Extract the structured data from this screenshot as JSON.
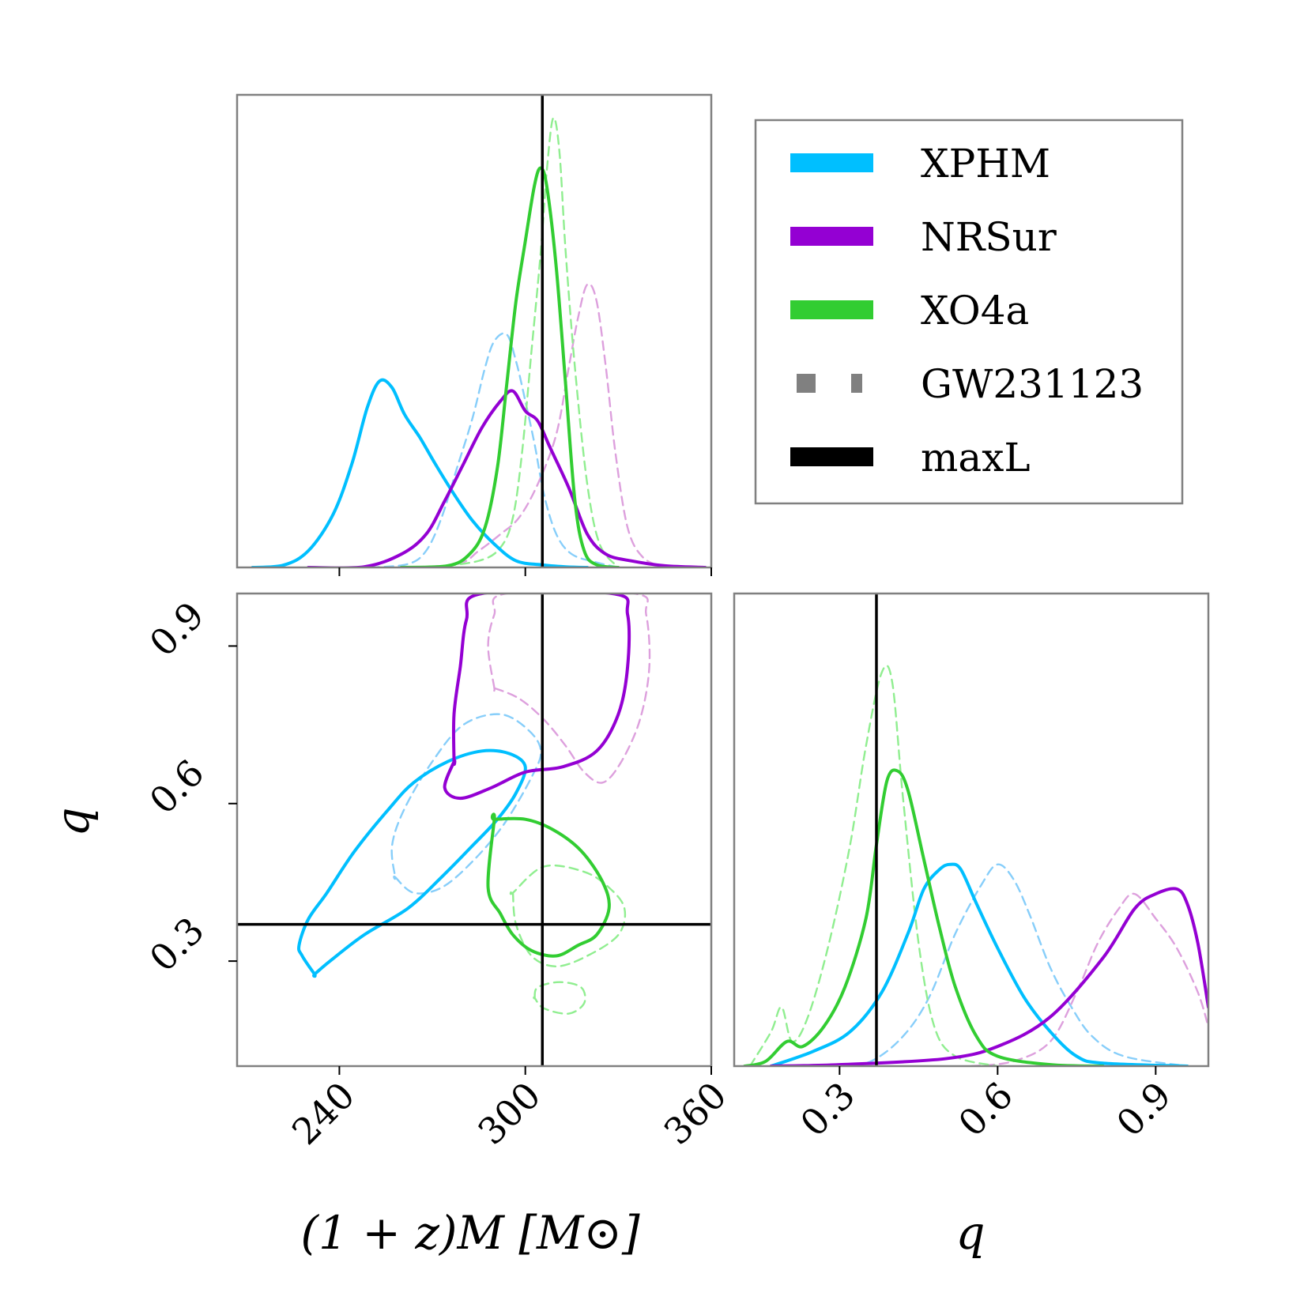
{
  "chart_data": {
    "type": "corner",
    "title": "",
    "parameters": [
      {
        "key": "M",
        "label": "(1 + z)M  [M⊙]",
        "range": [
          207,
          360
        ],
        "ticks": [
          240,
          300,
          360
        ],
        "tick_labels": [
          "240",
          "300",
          "360"
        ]
      },
      {
        "key": "q",
        "label": "q",
        "range": [
          0.1,
          1.0
        ],
        "ticks": [
          0.3,
          0.6,
          0.9
        ],
        "tick_labels": [
          "0.3",
          "0.6",
          "0.9"
        ]
      }
    ],
    "maxL": {
      "M": 305.5,
      "q": 0.37
    },
    "legend": {
      "position": "top-right",
      "entries": [
        {
          "label": "XPHM",
          "style": "solid",
          "color": "#00bfff"
        },
        {
          "label": "NRSur",
          "style": "solid",
          "color": "#9400d3"
        },
        {
          "label": "XO4a",
          "style": "solid",
          "color": "#32cd32"
        },
        {
          "label": "GW231123",
          "style": "dashed",
          "color": "#808080"
        },
        {
          "label": "maxL",
          "style": "solid",
          "color": "#000000"
        }
      ]
    },
    "series": [
      {
        "name": "XPHM",
        "style": "solid",
        "color": "#00bfff",
        "M_density": [
          [
            212,
            0.0
          ],
          [
            222,
            0.007
          ],
          [
            230,
            0.05
          ],
          [
            238,
            0.16
          ],
          [
            244,
            0.31
          ],
          [
            249,
            0.48
          ],
          [
            253,
            0.56
          ],
          [
            257,
            0.54
          ],
          [
            261,
            0.46
          ],
          [
            266,
            0.39
          ],
          [
            271,
            0.31
          ],
          [
            277,
            0.22
          ],
          [
            283,
            0.14
          ],
          [
            290,
            0.07
          ],
          [
            297,
            0.02
          ],
          [
            305,
            0.008
          ],
          [
            313,
            0.002
          ],
          [
            320,
            0.0
          ]
        ],
        "q_density": [
          [
            0.17,
            0.0
          ],
          [
            0.25,
            0.03
          ],
          [
            0.32,
            0.07
          ],
          [
            0.38,
            0.15
          ],
          [
            0.43,
            0.27
          ],
          [
            0.46,
            0.36
          ],
          [
            0.49,
            0.4
          ],
          [
            0.51,
            0.41
          ],
          [
            0.53,
            0.4
          ],
          [
            0.56,
            0.33
          ],
          [
            0.6,
            0.24
          ],
          [
            0.65,
            0.14
          ],
          [
            0.7,
            0.07
          ],
          [
            0.75,
            0.02
          ],
          [
            0.8,
            0.006
          ],
          [
            0.96,
            0.0
          ]
        ],
        "contour": [
          [
            232,
            0.275
          ],
          [
            228,
            0.31
          ],
          [
            227,
            0.33
          ],
          [
            230,
            0.38
          ],
          [
            236,
            0.43
          ],
          [
            245,
            0.51
          ],
          [
            256,
            0.59
          ],
          [
            264,
            0.64
          ],
          [
            275,
            0.68
          ],
          [
            286,
            0.7
          ],
          [
            295,
            0.695
          ],
          [
            300,
            0.67
          ],
          [
            297,
            0.62
          ],
          [
            291,
            0.57
          ],
          [
            283,
            0.52
          ],
          [
            273,
            0.46
          ],
          [
            262,
            0.4
          ],
          [
            248,
            0.35
          ],
          [
            237,
            0.3
          ],
          [
            232,
            0.275
          ]
        ]
      },
      {
        "name": "NRSur",
        "style": "solid",
        "color": "#9400d3",
        "M_density": [
          [
            230,
            0.0
          ],
          [
            248,
            0.002
          ],
          [
            260,
            0.04
          ],
          [
            268,
            0.1
          ],
          [
            274,
            0.2
          ],
          [
            280,
            0.31
          ],
          [
            286,
            0.42
          ],
          [
            292,
            0.5
          ],
          [
            296,
            0.53
          ],
          [
            300,
            0.47
          ],
          [
            304,
            0.44
          ],
          [
            308,
            0.36
          ],
          [
            314,
            0.24
          ],
          [
            320,
            0.1
          ],
          [
            326,
            0.04
          ],
          [
            334,
            0.02
          ],
          [
            345,
            0.005
          ],
          [
            358,
            0.0
          ]
        ],
        "q_density": [
          [
            0.17,
            0.0
          ],
          [
            0.3,
            0.003
          ],
          [
            0.5,
            0.015
          ],
          [
            0.6,
            0.04
          ],
          [
            0.7,
            0.1
          ],
          [
            0.8,
            0.22
          ],
          [
            0.86,
            0.32
          ],
          [
            0.9,
            0.35
          ],
          [
            0.94,
            0.36
          ],
          [
            0.96,
            0.33
          ],
          [
            0.98,
            0.25
          ],
          [
            1.0,
            0.12
          ]
        ],
        "contour": [
          [
            277,
            0.68
          ],
          [
            277,
            0.77
          ],
          [
            279,
            0.86
          ],
          [
            281,
            0.95
          ],
          [
            286,
            1.0
          ],
          [
            328,
            1.0
          ],
          [
            333,
            0.96
          ],
          [
            333,
            0.86
          ],
          [
            330,
            0.77
          ],
          [
            323,
            0.7
          ],
          [
            312,
            0.67
          ],
          [
            300,
            0.66
          ],
          [
            289,
            0.63
          ],
          [
            279,
            0.61
          ],
          [
            274,
            0.63
          ],
          [
            277,
            0.68
          ]
        ]
      },
      {
        "name": "XO4a",
        "style": "solid",
        "color": "#32cd32",
        "M_density": [
          [
            260,
            0.0
          ],
          [
            275,
            0.005
          ],
          [
            282,
            0.04
          ],
          [
            287,
            0.12
          ],
          [
            291,
            0.3
          ],
          [
            294,
            0.55
          ],
          [
            297,
            0.8
          ],
          [
            300,
            0.98
          ],
          [
            303,
            1.15
          ],
          [
            305,
            1.2
          ],
          [
            307,
            1.14
          ],
          [
            310,
            0.9
          ],
          [
            313,
            0.55
          ],
          [
            316,
            0.2
          ],
          [
            319,
            0.05
          ],
          [
            323,
            0.008
          ],
          [
            330,
            0.0
          ]
        ],
        "q_density": [
          [
            0.12,
            0.0
          ],
          [
            0.16,
            0.01
          ],
          [
            0.2,
            0.05
          ],
          [
            0.23,
            0.04
          ],
          [
            0.27,
            0.08
          ],
          [
            0.31,
            0.16
          ],
          [
            0.35,
            0.3
          ],
          [
            0.37,
            0.45
          ],
          [
            0.39,
            0.58
          ],
          [
            0.41,
            0.6
          ],
          [
            0.43,
            0.56
          ],
          [
            0.46,
            0.42
          ],
          [
            0.49,
            0.28
          ],
          [
            0.52,
            0.16
          ],
          [
            0.56,
            0.06
          ],
          [
            0.6,
            0.02
          ],
          [
            0.7,
            0.003
          ],
          [
            0.8,
            0.0
          ]
        ],
        "contour": [
          [
            290,
            0.57
          ],
          [
            288,
            0.44
          ],
          [
            292,
            0.39
          ],
          [
            296,
            0.35
          ],
          [
            302,
            0.32
          ],
          [
            310,
            0.31
          ],
          [
            317,
            0.33
          ],
          [
            323,
            0.35
          ],
          [
            327,
            0.4
          ],
          [
            325,
            0.45
          ],
          [
            318,
            0.51
          ],
          [
            309,
            0.55
          ],
          [
            300,
            0.57
          ],
          [
            290,
            0.57
          ]
        ]
      },
      {
        "name": "GW231123 XPHM",
        "style": "dashed",
        "color": "#87cefa",
        "M_density": [
          [
            250,
            0.0
          ],
          [
            262,
            0.01
          ],
          [
            268,
            0.05
          ],
          [
            273,
            0.15
          ],
          [
            278,
            0.3
          ],
          [
            283,
            0.45
          ],
          [
            287,
            0.6
          ],
          [
            290,
            0.68
          ],
          [
            294,
            0.7
          ],
          [
            297,
            0.62
          ],
          [
            300,
            0.5
          ],
          [
            303,
            0.37
          ],
          [
            306,
            0.22
          ],
          [
            310,
            0.1
          ],
          [
            315,
            0.04
          ],
          [
            323,
            0.015
          ],
          [
            330,
            0.0
          ]
        ],
        "q_density": [
          [
            0.3,
            0.0
          ],
          [
            0.36,
            0.01
          ],
          [
            0.42,
            0.06
          ],
          [
            0.47,
            0.14
          ],
          [
            0.52,
            0.27
          ],
          [
            0.57,
            0.37
          ],
          [
            0.6,
            0.41
          ],
          [
            0.63,
            0.38
          ],
          [
            0.66,
            0.31
          ],
          [
            0.7,
            0.2
          ],
          [
            0.74,
            0.12
          ],
          [
            0.78,
            0.06
          ],
          [
            0.84,
            0.02
          ],
          [
            0.96,
            0.0
          ]
        ],
        "contour": [
          [
            258,
            0.46
          ],
          [
            264,
            0.43
          ],
          [
            273,
            0.44
          ],
          [
            283,
            0.49
          ],
          [
            293,
            0.56
          ],
          [
            302,
            0.65
          ],
          [
            305,
            0.7
          ],
          [
            301,
            0.74
          ],
          [
            292,
            0.77
          ],
          [
            280,
            0.75
          ],
          [
            270,
            0.68
          ],
          [
            261,
            0.59
          ],
          [
            257,
            0.52
          ],
          [
            258,
            0.46
          ]
        ]
      },
      {
        "name": "GW231123 NRSur",
        "style": "dashed",
        "color": "#dda0dd",
        "M_density": [
          [
            260,
            0.0
          ],
          [
            278,
            0.01
          ],
          [
            285,
            0.05
          ],
          [
            292,
            0.1
          ],
          [
            298,
            0.15
          ],
          [
            304,
            0.25
          ],
          [
            310,
            0.4
          ],
          [
            314,
            0.6
          ],
          [
            317,
            0.75
          ],
          [
            320,
            0.85
          ],
          [
            323,
            0.8
          ],
          [
            326,
            0.6
          ],
          [
            329,
            0.35
          ],
          [
            333,
            0.12
          ],
          [
            338,
            0.03
          ],
          [
            345,
            0.0
          ]
        ],
        "q_density": [
          [
            0.55,
            0.0
          ],
          [
            0.63,
            0.01
          ],
          [
            0.7,
            0.05
          ],
          [
            0.75,
            0.15
          ],
          [
            0.79,
            0.25
          ],
          [
            0.83,
            0.32
          ],
          [
            0.86,
            0.35
          ],
          [
            0.9,
            0.3
          ],
          [
            0.94,
            0.24
          ],
          [
            0.98,
            0.15
          ],
          [
            1.0,
            0.08
          ]
        ],
        "contour": [
          [
            290,
            0.82
          ],
          [
            288,
            0.9
          ],
          [
            290,
            0.96
          ],
          [
            294,
            1.0
          ],
          [
            335,
            1.0
          ],
          [
            339,
            0.96
          ],
          [
            340,
            0.86
          ],
          [
            337,
            0.76
          ],
          [
            331,
            0.68
          ],
          [
            325,
            0.64
          ],
          [
            319,
            0.66
          ],
          [
            313,
            0.71
          ],
          [
            306,
            0.76
          ],
          [
            298,
            0.8
          ],
          [
            290,
            0.82
          ]
        ]
      },
      {
        "name": "GW231123 XO4a",
        "style": "dashed",
        "color": "#90ee90",
        "M_density": [
          [
            270,
            0.0
          ],
          [
            285,
            0.02
          ],
          [
            292,
            0.06
          ],
          [
            296,
            0.15
          ],
          [
            299,
            0.35
          ],
          [
            302,
            0.65
          ],
          [
            305,
            0.95
          ],
          [
            307,
            1.2
          ],
          [
            309,
            1.35
          ],
          [
            311,
            1.25
          ],
          [
            313,
            0.95
          ],
          [
            316,
            0.6
          ],
          [
            320,
            0.25
          ],
          [
            324,
            0.07
          ],
          [
            330,
            0.0
          ]
        ],
        "q_density": [
          [
            0.13,
            0.0
          ],
          [
            0.17,
            0.07
          ],
          [
            0.19,
            0.12
          ],
          [
            0.21,
            0.05
          ],
          [
            0.24,
            0.1
          ],
          [
            0.28,
            0.25
          ],
          [
            0.32,
            0.45
          ],
          [
            0.35,
            0.65
          ],
          [
            0.38,
            0.8
          ],
          [
            0.4,
            0.78
          ],
          [
            0.42,
            0.55
          ],
          [
            0.45,
            0.25
          ],
          [
            0.48,
            0.08
          ],
          [
            0.52,
            0.02
          ],
          [
            0.6,
            0.0
          ]
        ],
        "contour": [
          [
            296,
            0.43
          ],
          [
            297,
            0.37
          ],
          [
            302,
            0.31
          ],
          [
            310,
            0.29
          ],
          [
            320,
            0.31
          ],
          [
            330,
            0.35
          ],
          [
            332,
            0.4
          ],
          [
            327,
            0.44
          ],
          [
            319,
            0.47
          ],
          [
            306,
            0.48
          ],
          [
            296,
            0.43
          ]
        ],
        "contour_islands": [
          [
            [
              303,
              0.23
            ],
            [
              304,
              0.25
            ],
            [
              311,
              0.26
            ],
            [
              318,
              0.25
            ],
            [
              319,
              0.22
            ],
            [
              314,
              0.2
            ],
            [
              306,
              0.21
            ],
            [
              303,
              0.23
            ]
          ]
        ]
      }
    ]
  }
}
